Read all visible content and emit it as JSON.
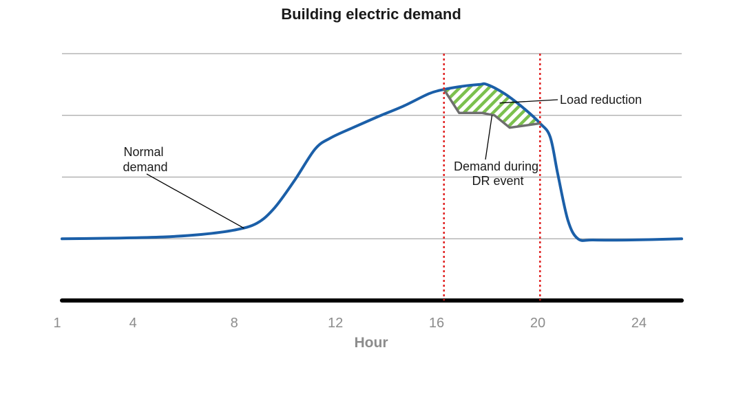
{
  "chart_data": {
    "type": "line",
    "title": "Building electric demand",
    "xlabel": "Hour",
    "ylabel": "",
    "xlim": [
      1,
      25.5
    ],
    "ylim": [
      0,
      4
    ],
    "x_ticks": [
      1,
      4,
      8,
      12,
      16,
      20,
      24
    ],
    "y_gridlines": [
      1,
      2,
      3,
      4
    ],
    "grid": true,
    "series": [
      {
        "role": "normal",
        "color": "#1b5fa8",
        "points": [
          [
            1,
            1.0
          ],
          [
            3,
            1.01
          ],
          [
            5,
            1.03
          ],
          [
            6.5,
            1.07
          ],
          [
            7.8,
            1.14
          ],
          [
            8.7,
            1.25
          ],
          [
            9.4,
            1.5
          ],
          [
            10.2,
            1.95
          ],
          [
            11,
            2.45
          ],
          [
            11.6,
            2.63
          ],
          [
            12.5,
            2.8
          ],
          [
            13.5,
            2.98
          ],
          [
            14.5,
            3.15
          ],
          [
            15.5,
            3.35
          ],
          [
            16.1,
            3.42
          ],
          [
            16.8,
            3.47
          ],
          [
            17.5,
            3.5
          ],
          [
            17.8,
            3.5
          ],
          [
            18.5,
            3.35
          ],
          [
            19.3,
            3.1
          ],
          [
            19.9,
            2.87
          ],
          [
            20.3,
            2.65
          ],
          [
            20.6,
            2.05
          ],
          [
            21,
            1.3
          ],
          [
            21.4,
            1.0
          ],
          [
            22,
            0.98
          ],
          [
            23.5,
            0.98
          ],
          [
            25.5,
            1.0
          ]
        ]
      },
      {
        "role": "dr_event",
        "color": "#6e6e6e",
        "points": [
          [
            16.1,
            3.42
          ],
          [
            16.7,
            3.04
          ],
          [
            17.6,
            3.04
          ],
          [
            18.1,
            3.0
          ],
          [
            18.7,
            2.8
          ],
          [
            19.9,
            2.87
          ]
        ]
      }
    ],
    "event_window": {
      "start": 16.1,
      "end": 19.9,
      "color": "#e02020",
      "style": "dotted"
    },
    "load_reduction_fill": {
      "pattern": "diagonal-hatch",
      "color": "#7cc04e"
    },
    "annotations": [
      {
        "id": "normal-demand-label",
        "lines": [
          "Normal",
          "demand"
        ],
        "target": [
          8.2,
          1.17
        ]
      },
      {
        "id": "load-reduction-label",
        "lines": [
          "Load reduction"
        ],
        "target": [
          18.3,
          3.2
        ]
      },
      {
        "id": "dr-event-label",
        "lines": [
          "Demand during",
          "DR event"
        ],
        "target": [
          18.0,
          3.0
        ]
      }
    ]
  }
}
